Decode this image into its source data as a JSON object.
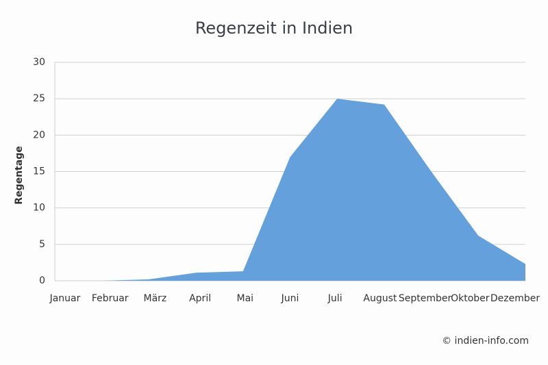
{
  "chart_data": {
    "type": "area",
    "title": "Regenzeit in Indien",
    "y_label": "Regentage",
    "categories": [
      "Januar",
      "Februar",
      "März",
      "April",
      "Mai",
      "Juni",
      "Juli",
      "August",
      "September",
      "Oktober",
      "Dezember"
    ],
    "values": [
      0,
      0,
      0.2,
      1.1,
      1.3,
      17,
      25,
      24.2,
      15,
      6.2,
      2.3
    ],
    "color": "#64a1dc",
    "ylim": [
      0,
      30
    ],
    "yticks": [
      0,
      5,
      10,
      15,
      20,
      25,
      30
    ],
    "grid": true,
    "source": "© indien-info.com"
  }
}
